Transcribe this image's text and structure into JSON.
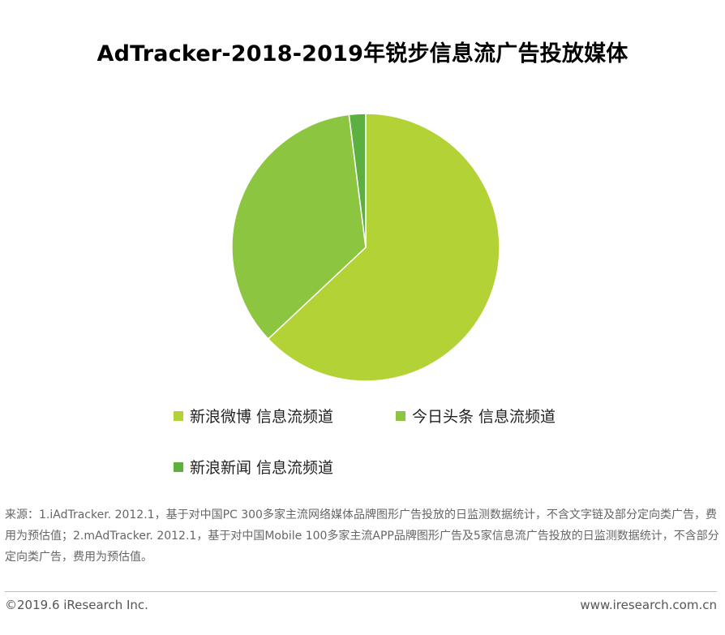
{
  "title": "AdTracker-2018-2019年锐步信息流广告投放媒体",
  "chart_data": {
    "type": "pie",
    "title": "AdTracker-2018-2019年锐步信息流广告投放媒体",
    "slices": [
      {
        "label": "新浪微博 信息流频道",
        "value": 63.0,
        "color": "#b2d235"
      },
      {
        "label": "今日头条 信息流频道",
        "value": 35.0,
        "color": "#8cc540"
      },
      {
        "label": "新浪新闻 信息流频道",
        "value": 2.0,
        "color": "#5bb040"
      }
    ],
    "legend_position": "bottom"
  },
  "note": "来源：1.iAdTracker. 2012.1，基于对中国PC 300多家主流网络媒体品牌图形广告投放的日监测数据统计，不含文字链及部分定向类广告，费用为预估值；2.mAdTracker. 2012.1，基于对中国Mobile 100多家主流APP品牌图形广告及5家信息流广告投放的日监测数据统计，不含部分定向类广告，费用为预估值。",
  "footer": {
    "copyright": "©2019.6  iResearch Inc.",
    "website": "www.iresearch.com.cn"
  }
}
